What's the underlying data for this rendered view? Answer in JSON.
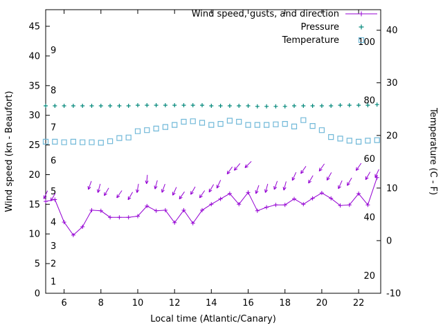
{
  "chart_data": {
    "type": "line",
    "xlabel": "Local time (Atlantic/Canary)",
    "ylabel_left": "Wind speed (kn - Beaufort)",
    "ylabel_right": "Temperature (C - F)",
    "xlim": [
      5,
      23.2
    ],
    "ylim_left": [
      0,
      47.8
    ],
    "ylim_right": [
      -10,
      43.9
    ],
    "x_ticks": [
      6,
      8,
      10,
      12,
      14,
      16,
      18,
      20,
      22
    ],
    "y_ticks_left": [
      0,
      5,
      10,
      15,
      20,
      25,
      30,
      35,
      40,
      45
    ],
    "y_ticks_right": [
      -10,
      0,
      10,
      20,
      30,
      40
    ],
    "beaufort_scale_labels": [
      {
        "bft": 1,
        "kn": 2
      },
      {
        "bft": 2,
        "kn": 5
      },
      {
        "bft": 3,
        "kn": 8
      },
      {
        "bft": 4,
        "kn": 12
      },
      {
        "bft": 5,
        "kn": 17.2
      },
      {
        "bft": 6,
        "kn": 22.4
      },
      {
        "bft": 7,
        "kn": 28
      },
      {
        "bft": 8,
        "kn": 34.2
      },
      {
        "bft": 9,
        "kn": 41
      }
    ],
    "fahrenheit_scale_labels": [
      20,
      40,
      60,
      80,
      100
    ],
    "x": [
      5,
      5.5,
      6,
      6.5,
      7,
      7.5,
      8,
      8.5,
      9,
      9.5,
      10,
      10.5,
      11,
      11.5,
      12,
      12.5,
      13,
      13.5,
      14,
      14.5,
      15,
      15.5,
      16,
      16.5,
      17,
      17.5,
      18,
      18.5,
      19,
      19.5,
      20,
      20.5,
      21,
      21.5,
      22,
      22.5,
      23
    ],
    "series": [
      {
        "name": "Wind speed, gusts, and direction",
        "type": "line+points",
        "marker": "plus",
        "color": "#9400d3",
        "axis": "left",
        "values": [
          15.5,
          15.8,
          12,
          9.8,
          11.2,
          14,
          13.9,
          12.8,
          12.8,
          12.8,
          13,
          14.7,
          13.9,
          14,
          11.9,
          14,
          11.8,
          14,
          15,
          15.9,
          16.8,
          15,
          17,
          13.9,
          14.5,
          14.9,
          14.9,
          15.9,
          15,
          16,
          16.9,
          16,
          14.8,
          14.9,
          16.8,
          14.9,
          19.5
        ]
      },
      {
        "name": "Wind gust vectors",
        "type": "vector",
        "color": "#9400d3",
        "axis": "left",
        "x": [
          5,
          5.4,
          7.4,
          7.9,
          8.3,
          9,
          9.6,
          10,
          10.5,
          11,
          11.4,
          12,
          12.4,
          13,
          13.5,
          14,
          14.4,
          15,
          15.4,
          16,
          16.5,
          17,
          17.5,
          18,
          18.5,
          19,
          19.4,
          20,
          20.4,
          21,
          21.5,
          22,
          22.5,
          23
        ],
        "kn": [
          16.6,
          16.2,
          18.2,
          17.7,
          17.1,
          16.7,
          16.4,
          17.7,
          19.2,
          18.3,
          17.7,
          17.2,
          16.5,
          17.3,
          16.7,
          17.7,
          18.4,
          20.7,
          21.3,
          21.7,
          17.5,
          17.7,
          18.2,
          18.1,
          19.7,
          20.8,
          19.2,
          21.2,
          19.7,
          18.3,
          18.8,
          21.3,
          19.8,
          20.2
        ],
        "dir_deg": [
          205,
          210,
          200,
          195,
          210,
          215,
          210,
          190,
          185,
          195,
          200,
          205,
          215,
          210,
          215,
          210,
          205,
          215,
          220,
          225,
          200,
          195,
          200,
          195,
          205,
          215,
          210,
          215,
          210,
          205,
          210,
          215,
          210,
          205
        ]
      },
      {
        "name": "Pressure",
        "type": "points",
        "marker": "plus",
        "color": "#00877a",
        "axis": "left-plot-units",
        "values": [
          31.6,
          31.6,
          31.6,
          31.6,
          31.6,
          31.6,
          31.6,
          31.6,
          31.6,
          31.6,
          31.7,
          31.7,
          31.7,
          31.7,
          31.7,
          31.7,
          31.7,
          31.7,
          31.6,
          31.6,
          31.6,
          31.6,
          31.6,
          31.5,
          31.5,
          31.5,
          31.5,
          31.6,
          31.6,
          31.6,
          31.6,
          31.6,
          31.7,
          31.7,
          31.7,
          31.7,
          31.8
        ]
      },
      {
        "name": "Temperature",
        "type": "points",
        "marker": "square-open",
        "color": "#70b8d8",
        "axis": "right-celsius",
        "values_c": [
          18.8,
          18.8,
          18.7,
          18.8,
          18.7,
          18.7,
          18.6,
          18.9,
          19.5,
          19.6,
          20.8,
          21,
          21.3,
          21.6,
          22,
          22.6,
          22.7,
          22.4,
          22,
          22.2,
          22.8,
          22.6,
          22,
          22,
          22,
          22.1,
          22.2,
          21.7,
          22.9,
          21.8,
          21,
          19.7,
          19.4,
          19,
          18.8,
          19,
          19.1
        ]
      }
    ],
    "legend_position": "top-right-inside",
    "grid": false,
    "axis_color": "#000000"
  }
}
